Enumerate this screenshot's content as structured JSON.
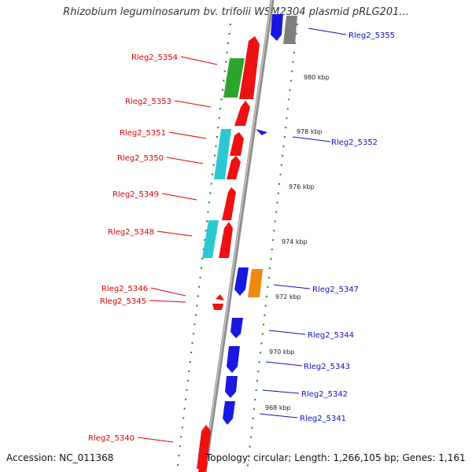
{
  "title": "Rhizobium leguminosarum bv. trifolii WSM2304 plasmid pRLG201...",
  "footer": {
    "accession": "Accession: NC_011368",
    "topology": "Topology: circular; Length: 1,266,105 bp; Genes: 1,161"
  },
  "colors": {
    "forward_strand": "#ee1111",
    "reverse_strand": "#1818e0",
    "left_label": "#e00000",
    "right_label": "#1010c0",
    "backbone": "#999999",
    "tick_marks": "#118811"
  },
  "scale_labels": [
    "980 kbp",
    "978 kbp",
    "976 kbp",
    "974 kbp",
    "972 kbp",
    "970 kbp",
    "968 kbp"
  ],
  "left_labels": [
    "Rleg2_5354",
    "Rleg2_5353",
    "Rleg2_5351",
    "Rleg2_5350",
    "Rleg2_5349",
    "Rleg2_5348",
    "Rleg2_5346",
    "Rleg2_5345",
    "Rleg2_5340"
  ],
  "right_labels": [
    "Rleg2_5355",
    "Rleg2_5352",
    "Rleg2_5347",
    "Rleg2_5344",
    "Rleg2_5343",
    "Rleg2_5342",
    "Rleg2_5341"
  ]
}
